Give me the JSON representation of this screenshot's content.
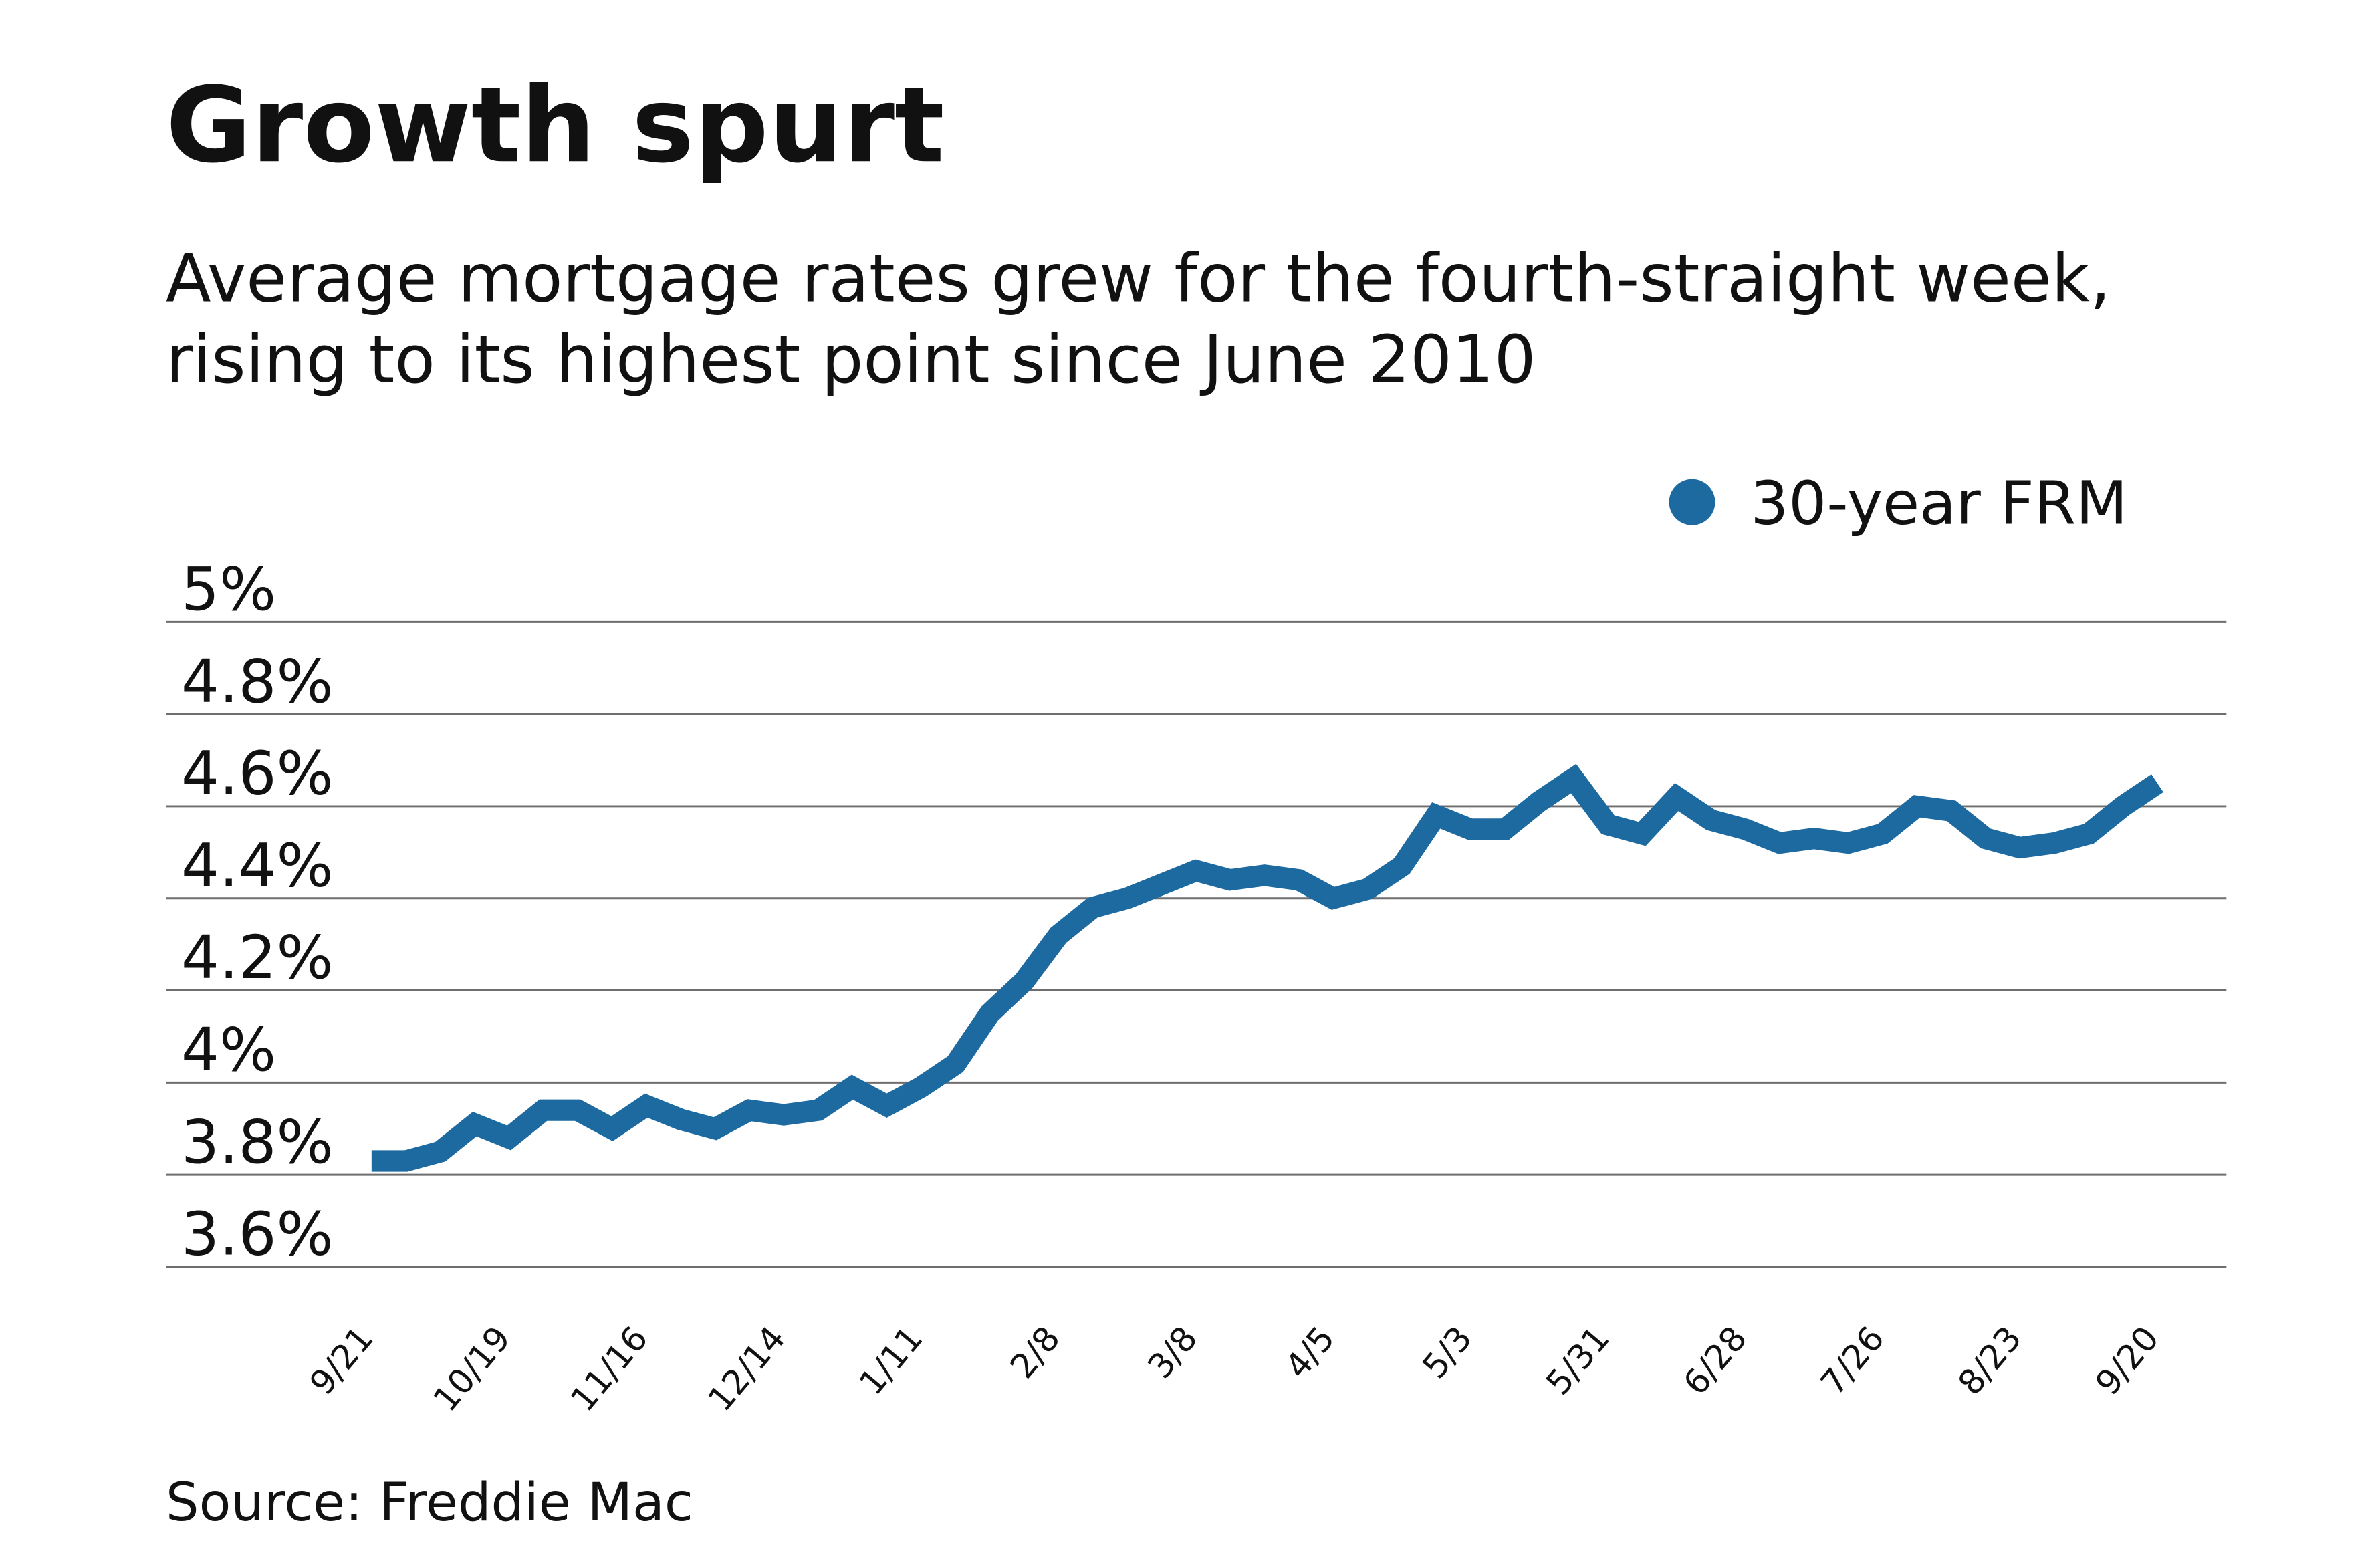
{
  "title": "Growth spurt",
  "subtitle": [
    "Average mortgage rates grew for the fourth-straight week,",
    "rising to its highest point since June 2010"
  ],
  "source": "Source: Freddie Mac",
  "colors": {
    "series": "#1c6aa0",
    "grid": "#6e6e6e"
  },
  "chart_data": {
    "type": "line",
    "ylim": [
      3.6,
      5.0
    ],
    "yticks": [
      3.6,
      3.8,
      4.0,
      4.2,
      4.4,
      4.6,
      4.8,
      5.0
    ],
    "ytick_labels": [
      "3.6%",
      "3.8%",
      "4%",
      "4.2%",
      "4.4%",
      "4.6%",
      "4.8%",
      "5%"
    ],
    "xtick_labels": [
      "9/21",
      "10/19",
      "11/16",
      "12/14",
      "1/11",
      "2/8",
      "3/8",
      "4/5",
      "5/3",
      "5/31",
      "6/28",
      "7/26",
      "8/23",
      "9/20"
    ],
    "grid": true,
    "legend_position": "top-right",
    "series": [
      {
        "name": "30-year FRM",
        "x": [
          "9/21",
          "9/28",
          "10/5",
          "10/12",
          "10/19",
          "10/26",
          "11/2",
          "11/9",
          "11/16",
          "11/22",
          "11/30",
          "12/7",
          "12/14",
          "12/21",
          "12/28",
          "1/4",
          "1/11",
          "1/18",
          "1/25",
          "2/1",
          "2/8",
          "2/15",
          "2/22",
          "3/1",
          "3/8",
          "3/15",
          "3/22",
          "3/29",
          "4/5",
          "4/12",
          "4/19",
          "4/26",
          "5/3",
          "5/10",
          "5/17",
          "5/24",
          "5/31",
          "6/7",
          "6/14",
          "6/21",
          "6/28",
          "7/5",
          "7/12",
          "7/19",
          "7/26",
          "8/2",
          "8/9",
          "8/16",
          "8/23",
          "8/30",
          "9/6",
          "9/13",
          "9/20"
        ],
        "values": [
          3.83,
          3.83,
          3.85,
          3.91,
          3.88,
          3.94,
          3.94,
          3.9,
          3.95,
          3.92,
          3.9,
          3.94,
          3.93,
          3.94,
          3.99,
          3.95,
          3.99,
          4.04,
          4.15,
          4.22,
          4.32,
          4.38,
          4.4,
          4.43,
          4.46,
          4.44,
          4.45,
          4.44,
          4.4,
          4.42,
          4.47,
          4.58,
          4.55,
          4.55,
          4.61,
          4.66,
          4.56,
          4.54,
          4.62,
          4.57,
          4.55,
          4.52,
          4.53,
          4.52,
          4.54,
          4.6,
          4.59,
          4.53,
          4.51,
          4.52,
          4.54,
          4.6,
          4.65
        ]
      }
    ]
  }
}
